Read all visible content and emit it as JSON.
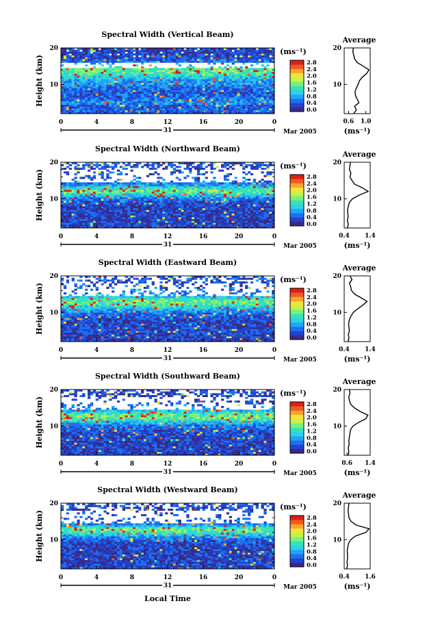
{
  "figure": {
    "date_label": "Mar 2005",
    "day_label": "31",
    "xlabel": "Local Time",
    "ylabel": "Height (km)",
    "unit_label": "(ms⁻¹)",
    "average_title": "Average",
    "colormap": [
      "#3a2a86",
      "#2244cc",
      "#1d6ff2",
      "#1fa6f5",
      "#2fd0e8",
      "#36e3b5",
      "#7bf07a",
      "#c7f24a",
      "#f4e33a",
      "#f9a52c",
      "#f05a20",
      "#d8201a"
    ]
  },
  "chart_data": [
    {
      "type": "heatmap",
      "title": "Spectral Width (Vertical Beam)",
      "x_ticks": [
        "0",
        "4",
        "8",
        "12",
        "16",
        "20",
        "0"
      ],
      "xlim": [
        0,
        24
      ],
      "y_ticks": [
        "10",
        "20"
      ],
      "ylim": [
        2,
        20
      ],
      "colorbar_ticks": [
        "0.0",
        "0.4",
        "0.8",
        "1.2",
        "1.6",
        "2.0",
        "2.4",
        "2.8"
      ],
      "clim": [
        0,
        2.8
      ],
      "average": {
        "title": "Average",
        "x_ticks": [
          "0.6",
          "1.0"
        ],
        "xlim": [
          0.5,
          1.1
        ],
        "y": [
          2,
          3,
          4,
          5,
          6,
          7,
          8,
          9,
          10,
          11,
          12,
          13,
          14,
          15,
          16,
          17,
          18,
          19,
          20
        ],
        "x": [
          0.72,
          0.78,
          0.74,
          0.84,
          0.8,
          0.76,
          0.75,
          0.78,
          0.82,
          0.85,
          0.92,
          1.02,
          1.07,
          0.94,
          0.8,
          0.74,
          0.72,
          0.7,
          0.71
        ]
      }
    },
    {
      "type": "heatmap",
      "title": "Spectral Width (Northward Beam)",
      "x_ticks": [
        "0",
        "4",
        "8",
        "12",
        "16",
        "20",
        "0"
      ],
      "xlim": [
        0,
        24
      ],
      "y_ticks": [
        "10",
        "20"
      ],
      "ylim": [
        2,
        20
      ],
      "colorbar_ticks": [
        "0.0",
        "0.4",
        "0.8",
        "1.2",
        "1.6",
        "2.0",
        "2.4",
        "2.8"
      ],
      "clim": [
        0,
        2.8
      ],
      "average": {
        "title": "Average",
        "x_ticks": [
          "0.4",
          "1.4"
        ],
        "xlim": [
          0.4,
          1.4
        ],
        "y": [
          2,
          3,
          4,
          5,
          6,
          7,
          8,
          9,
          10,
          11,
          12,
          13,
          14,
          15,
          16,
          17,
          18,
          19,
          20
        ],
        "x": [
          0.52,
          0.56,
          0.52,
          0.55,
          0.54,
          0.53,
          0.56,
          0.6,
          0.72,
          0.98,
          1.32,
          1.1,
          0.8,
          0.7,
          0.62,
          0.66,
          0.6,
          0.62,
          0.64
        ]
      }
    },
    {
      "type": "heatmap",
      "title": "Spectral Width (Eastward Beam)",
      "x_ticks": [
        "0",
        "4",
        "8",
        "12",
        "16",
        "20",
        "0"
      ],
      "xlim": [
        0,
        24
      ],
      "y_ticks": [
        "10",
        "20"
      ],
      "ylim": [
        2,
        20
      ],
      "colorbar_ticks": [
        "0.0",
        "0.4",
        "0.8",
        "1.2",
        "1.6",
        "2.0",
        "2.4",
        "2.8"
      ],
      "clim": [
        0,
        2.8
      ],
      "average": {
        "title": "Average",
        "x_ticks": [
          "0.4",
          "1.4"
        ],
        "xlim": [
          0.4,
          1.4
        ],
        "y": [
          2,
          3,
          4,
          5,
          6,
          7,
          8,
          9,
          10,
          11,
          12,
          13,
          14,
          15,
          16,
          17,
          18,
          19,
          20
        ],
        "x": [
          0.55,
          0.58,
          0.56,
          0.6,
          0.58,
          0.57,
          0.6,
          0.66,
          0.75,
          0.92,
          1.12,
          1.28,
          1.05,
          0.8,
          0.68,
          0.65,
          0.6,
          0.7,
          0.62
        ]
      }
    },
    {
      "type": "heatmap",
      "title": "Spectral Width (Southward Beam)",
      "x_ticks": [
        "0",
        "4",
        "8",
        "12",
        "16",
        "20",
        "0"
      ],
      "xlim": [
        0,
        24
      ],
      "y_ticks": [
        "10",
        "20"
      ],
      "ylim": [
        2,
        20
      ],
      "colorbar_ticks": [
        "0.0",
        "0.4",
        "0.8",
        "1.2",
        "1.6",
        "2.0",
        "2.4",
        "2.8"
      ],
      "clim": [
        0,
        2.8
      ],
      "average": {
        "title": "Average",
        "x_ticks": [
          "0.6",
          "1.4"
        ],
        "xlim": [
          0.5,
          1.4
        ],
        "y": [
          2,
          3,
          4,
          5,
          6,
          7,
          8,
          9,
          10,
          11,
          12,
          13,
          14,
          15,
          16,
          17,
          18,
          19,
          20
        ],
        "x": [
          0.64,
          0.66,
          0.64,
          0.67,
          0.66,
          0.68,
          0.7,
          0.72,
          0.8,
          1.0,
          1.25,
          1.32,
          1.05,
          0.85,
          0.72,
          0.68,
          0.66,
          0.7,
          0.68
        ]
      }
    },
    {
      "type": "heatmap",
      "title": "Spectral Width (Westward Beam)",
      "x_ticks": [
        "0",
        "4",
        "8",
        "12",
        "16",
        "20",
        "0"
      ],
      "xlim": [
        0,
        24
      ],
      "y_ticks": [
        "10",
        "20"
      ],
      "ylim": [
        2,
        20
      ],
      "colorbar_ticks": [
        "0.0",
        "0.4",
        "0.8",
        "1.2",
        "1.6",
        "2.0",
        "2.4",
        "2.8"
      ],
      "clim": [
        0,
        2.8
      ],
      "average": {
        "title": "Average",
        "x_ticks": [
          "0.4",
          "1.6"
        ],
        "xlim": [
          0.4,
          1.6
        ],
        "y": [
          2,
          3,
          4,
          5,
          6,
          7,
          8,
          9,
          10,
          11,
          12,
          13,
          14,
          15,
          16,
          17,
          18,
          19,
          20
        ],
        "x": [
          0.52,
          0.55,
          0.53,
          0.56,
          0.55,
          0.54,
          0.57,
          0.6,
          0.7,
          0.92,
          1.4,
          1.55,
          0.95,
          0.72,
          0.62,
          0.6,
          0.58,
          0.6,
          0.62
        ]
      }
    }
  ]
}
